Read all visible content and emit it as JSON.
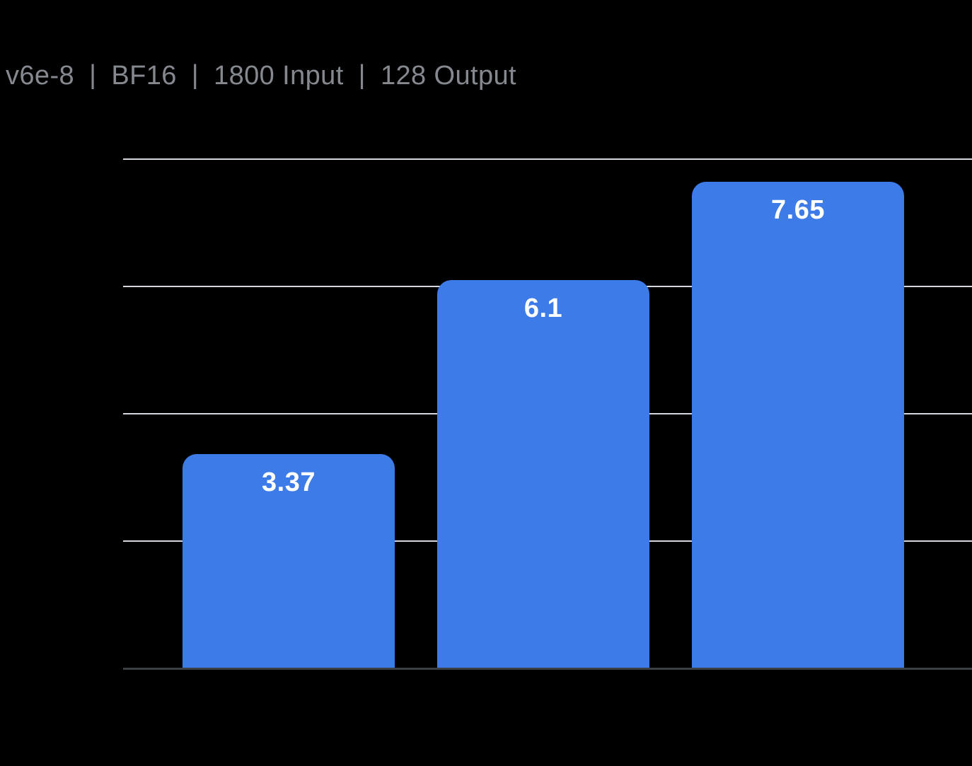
{
  "header": {
    "title_segments": [
      "v6e-8",
      "BF16",
      "1800 Input",
      "128 Output"
    ],
    "separator": "|"
  },
  "chart_data": {
    "type": "bar",
    "title": "v6e-8 | BF16 | 1800 Input | 128 Output",
    "values": [
      3.37,
      6.1,
      7.65
    ],
    "bar_labels": [
      "3.37",
      "6.1",
      "7.65"
    ],
    "xlabel": "",
    "ylabel": "",
    "ylim": [
      0,
      8
    ],
    "gridline_step": 2,
    "grid": true,
    "axis_tick_labels_visible": false,
    "category_labels_visible": false,
    "legend": false
  },
  "colors": {
    "background": "#000000",
    "bar": "#3C7BE8",
    "bar_label": "#FFFFFF",
    "title": "#85898F",
    "gridline": "#D5D8DE",
    "baseline": "#3C4043"
  }
}
